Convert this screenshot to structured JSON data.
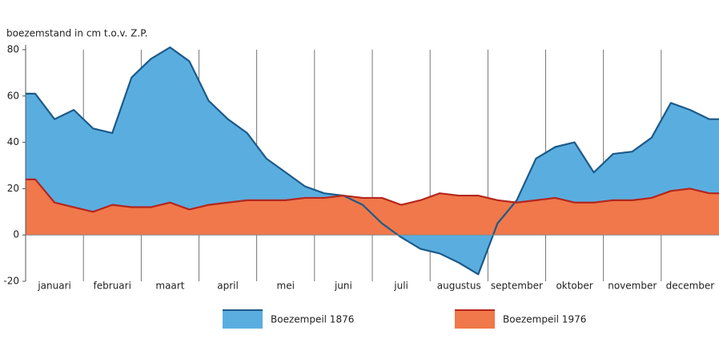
{
  "chart_data": {
    "type": "area",
    "ylabel": "boezemstand in cm t.o.v. Z.P.",
    "categories": [
      null,
      "januari",
      null,
      null,
      "februari",
      null,
      null,
      "maart",
      null,
      null,
      "april",
      null,
      null,
      "mei",
      null,
      null,
      "juni",
      null,
      null,
      "juli",
      null,
      null,
      "augustus",
      null,
      null,
      "september",
      null,
      null,
      "oktober",
      null,
      null,
      "november",
      null,
      null,
      "december",
      null
    ],
    "series": [
      {
        "name": "Boezempeil 1876",
        "color": "#5aaedf",
        "line_color": "#1c5a8a",
        "values": [
          61,
          50,
          54,
          46,
          44,
          68,
          76,
          81,
          75,
          58,
          50,
          44,
          33,
          27,
          21,
          18,
          17,
          13,
          5,
          -1,
          -6,
          -8,
          -12,
          -17,
          5,
          15,
          33,
          38,
          40,
          27,
          35,
          36,
          42,
          57,
          54,
          50
        ]
      },
      {
        "name": "Boezempeil 1976",
        "color": "#f0784a",
        "line_color": "#b5261e",
        "values": [
          24,
          14,
          12,
          10,
          13,
          12,
          12,
          14,
          11,
          13,
          14,
          15,
          15,
          15,
          16,
          16,
          17,
          16,
          16,
          13,
          15,
          18,
          17,
          17,
          15,
          14,
          15,
          16,
          14,
          14,
          15,
          15,
          16,
          19,
          20,
          18
        ]
      }
    ],
    "ylim": [
      -20,
      80
    ],
    "yticks": [
      -20,
      0,
      20,
      40,
      60,
      80
    ],
    "legend": "bottom"
  }
}
